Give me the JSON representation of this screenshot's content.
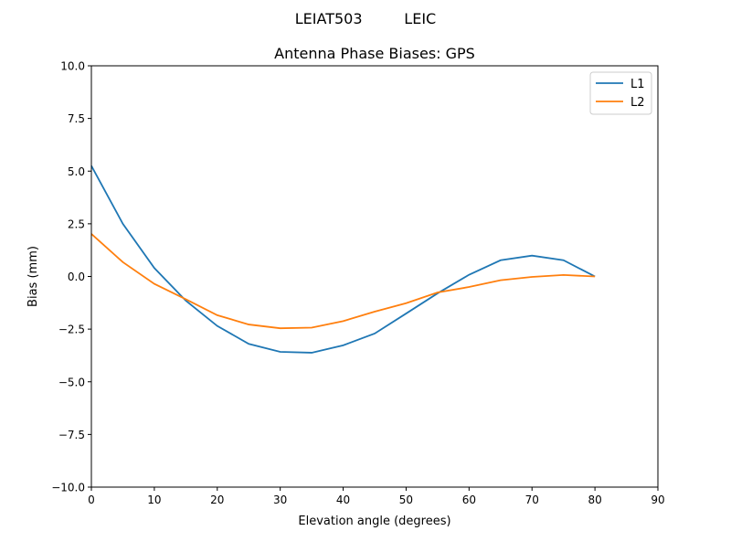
{
  "chart_data": {
    "type": "line",
    "suptitle": "LEIAT503         LEIC",
    "title": "Antenna Phase Biases: GPS",
    "xlabel": "Elevation angle (degrees)",
    "ylabel": "Bias (mm)",
    "xlim": [
      0,
      90
    ],
    "ylim": [
      -10,
      10
    ],
    "xticks": [
      0,
      10,
      20,
      30,
      40,
      50,
      60,
      70,
      80,
      90
    ],
    "yticks": [
      -10.0,
      -7.5,
      -5.0,
      -2.5,
      0.0,
      2.5,
      5.0,
      7.5,
      10.0
    ],
    "ytick_labels": [
      "−10.0",
      "−7.5",
      "−5.0",
      "−2.5",
      "0.0",
      "2.5",
      "5.0",
      "7.5",
      "10.0"
    ],
    "grid": false,
    "legend_position": "top-right",
    "x": [
      0,
      5,
      10,
      15,
      20,
      25,
      30,
      35,
      40,
      45,
      50,
      55,
      60,
      65,
      70,
      75,
      80
    ],
    "series": [
      {
        "name": "L1",
        "color": "#1f77b4",
        "values": [
          5.25,
          2.5,
          0.4,
          -1.15,
          -2.35,
          -3.2,
          -3.58,
          -3.62,
          -3.27,
          -2.71,
          -1.76,
          -0.8,
          0.08,
          0.77,
          0.99,
          0.77,
          0.0
        ]
      },
      {
        "name": "L2",
        "color": "#ff7f0e",
        "values": [
          2.02,
          0.68,
          -0.35,
          -1.08,
          -1.84,
          -2.28,
          -2.46,
          -2.43,
          -2.12,
          -1.67,
          -1.27,
          -0.76,
          -0.5,
          -0.18,
          -0.02,
          0.07,
          0.0
        ]
      }
    ]
  }
}
